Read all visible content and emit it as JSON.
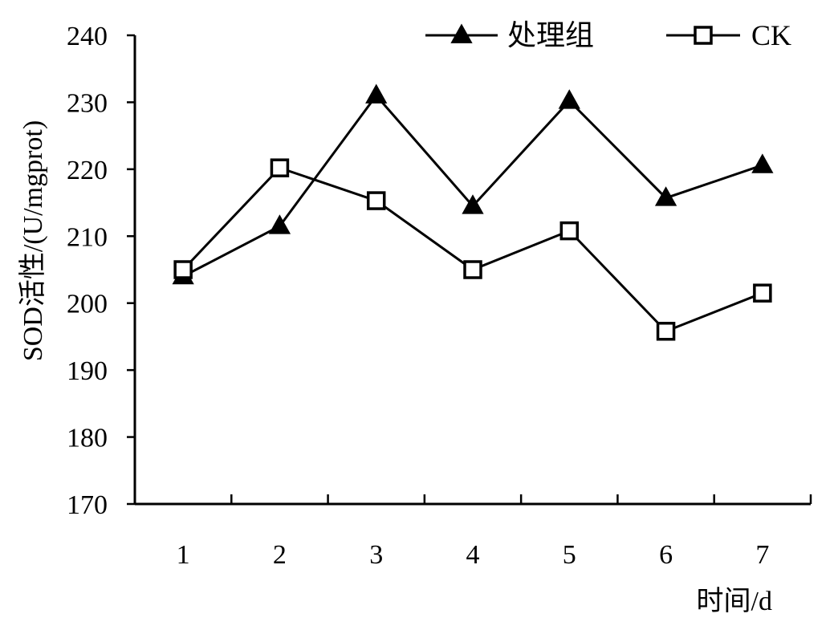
{
  "chart_data": {
    "type": "line",
    "categories": [
      "1",
      "2",
      "3",
      "4",
      "5",
      "6",
      "7"
    ],
    "series": [
      {
        "name": "处理组",
        "marker": "filled-triangle",
        "values": [
          204,
          211.5,
          231,
          214.5,
          230.2,
          215.7,
          220.6
        ]
      },
      {
        "name": "CK",
        "marker": "open-square",
        "values": [
          205,
          220.2,
          215.3,
          205,
          210.8,
          195.8,
          201.5
        ]
      }
    ],
    "xlabel": "时间/d",
    "ylabel": "SOD活性/(U/mgprot)",
    "ylim": [
      170,
      240
    ],
    "yticks": [
      170,
      180,
      190,
      200,
      210,
      220,
      230,
      240
    ],
    "grid": false,
    "legend_position": "top-right",
    "line_color": "#000000"
  }
}
